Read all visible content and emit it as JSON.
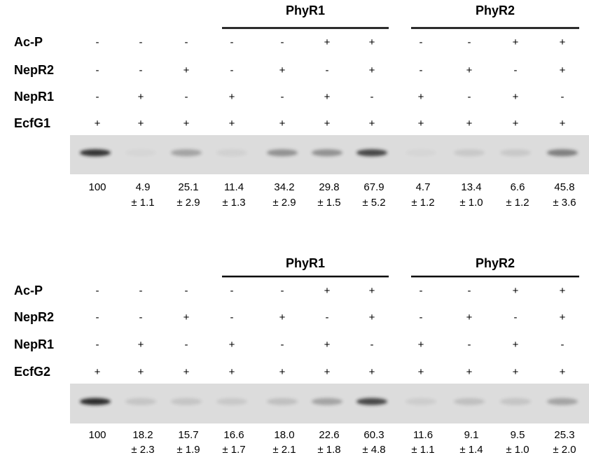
{
  "panels": [
    {
      "groups": [
        {
          "label": "PhyR1"
        },
        {
          "label": "PhyR2"
        }
      ],
      "rows": [
        {
          "label": "Ac-P",
          "cells": [
            "-",
            "-",
            "-",
            "-",
            "-",
            "+",
            "+",
            "-",
            "-",
            "+",
            "+"
          ]
        },
        {
          "label": "NepR2",
          "cells": [
            "-",
            "-",
            "+",
            "-",
            "+",
            "-",
            "+",
            "-",
            "+",
            "-",
            "+"
          ]
        },
        {
          "label": "NepR1",
          "cells": [
            "-",
            "+",
            "-",
            "+",
            "-",
            "+",
            "-",
            "+",
            "-",
            "+",
            "-"
          ]
        },
        {
          "label": "EcfG1",
          "cells": [
            "+",
            "+",
            "+",
            "+",
            "+",
            "+",
            "+",
            "+",
            "+",
            "+",
            "+"
          ]
        }
      ],
      "lanes": [
        {
          "mean": "100"
        },
        {
          "mean": "4.9",
          "sd": "± 1.1"
        },
        {
          "mean": "25.1",
          "sd": "± 2.9"
        },
        {
          "mean": "11.4",
          "sd": "± 1.3"
        },
        {
          "mean": "34.2",
          "sd": "± 2.9"
        },
        {
          "mean": "29.8",
          "sd": "± 1.5"
        },
        {
          "mean": "67.9",
          "sd": "± 5.2"
        },
        {
          "mean": "4.7",
          "sd": "± 1.2"
        },
        {
          "mean": "13.4",
          "sd": "± 1.0"
        },
        {
          "mean": "6.6",
          "sd": "± 1.2"
        },
        {
          "mean": "45.8",
          "sd": "± 3.6"
        }
      ]
    },
    {
      "groups": [
        {
          "label": "PhyR1"
        },
        {
          "label": "PhyR2"
        }
      ],
      "rows": [
        {
          "label": "Ac-P",
          "cells": [
            "-",
            "-",
            "-",
            "-",
            "-",
            "+",
            "+",
            "-",
            "-",
            "+",
            "+"
          ]
        },
        {
          "label": "NepR2",
          "cells": [
            "-",
            "-",
            "+",
            "-",
            "+",
            "-",
            "+",
            "-",
            "+",
            "-",
            "+"
          ]
        },
        {
          "label": "NepR1",
          "cells": [
            "-",
            "+",
            "-",
            "+",
            "-",
            "+",
            "-",
            "+",
            "-",
            "+",
            "-"
          ]
        },
        {
          "label": "EcfG2",
          "cells": [
            "+",
            "+",
            "+",
            "+",
            "+",
            "+",
            "+",
            "+",
            "+",
            "+",
            "+"
          ]
        }
      ],
      "lanes": [
        {
          "mean": "100"
        },
        {
          "mean": "18.2",
          "sd": "± 2.3"
        },
        {
          "mean": "15.7",
          "sd": "± 1.9"
        },
        {
          "mean": "16.6",
          "sd": "± 1.7"
        },
        {
          "mean": "18.0",
          "sd": "± 2.1"
        },
        {
          "mean": "22.6",
          "sd": "± 1.8"
        },
        {
          "mean": "60.3",
          "sd": "± 4.8"
        },
        {
          "mean": "11.6",
          "sd": "± 1.1"
        },
        {
          "mean": "9.1",
          "sd": "± 1.4"
        },
        {
          "mean": "9.5",
          "sd": "± 1.0"
        },
        {
          "mean": "25.3",
          "sd": "± 2.0"
        }
      ]
    }
  ]
}
